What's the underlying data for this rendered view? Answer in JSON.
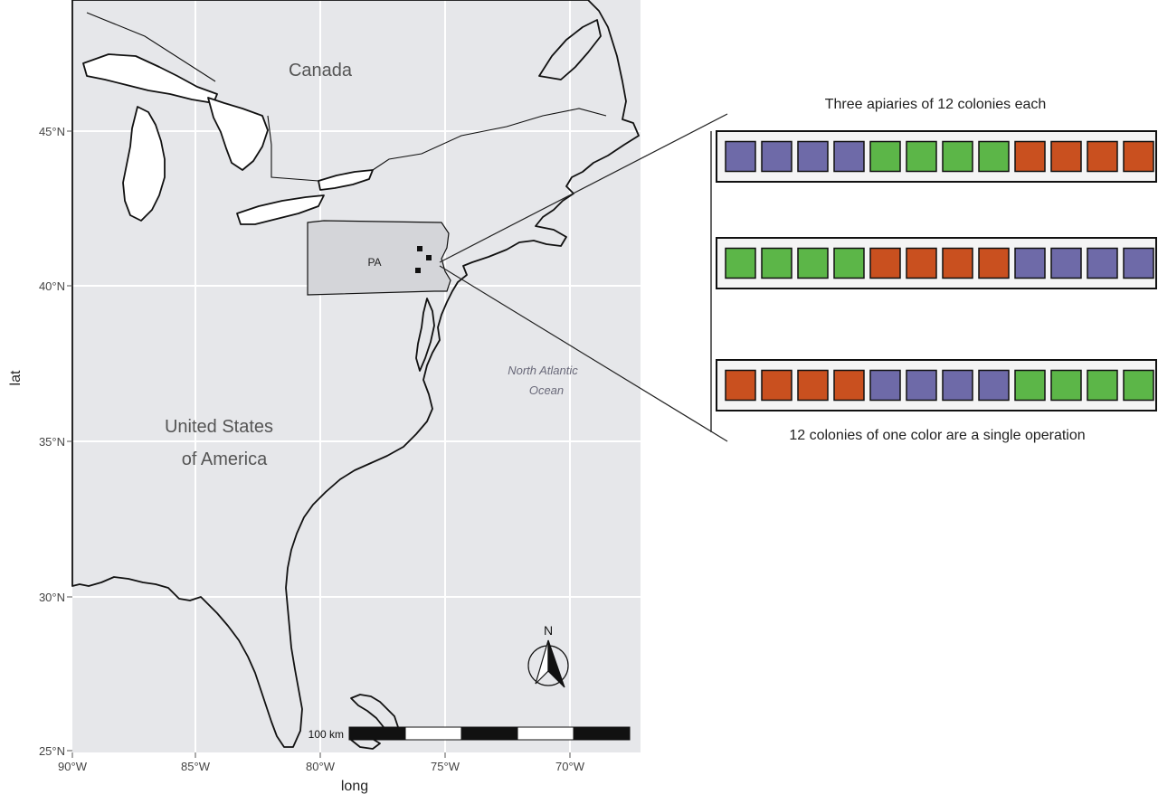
{
  "axes": {
    "xlabel": "long",
    "ylabel": "lat",
    "x_ticks": [
      "90°W",
      "85°W",
      "80°W",
      "75°W",
      "70°W"
    ],
    "y_ticks": [
      "45°N",
      "40°N",
      "35°N",
      "30°N",
      "25°N"
    ],
    "xlim": [
      -90,
      -67
    ],
    "ylim": [
      25,
      48
    ],
    "grid": true
  },
  "labels": {
    "canada": "Canada",
    "usa_line1": "United States",
    "usa_line2": "of America",
    "ocean_line1": "North Atlantic",
    "ocean_line2": "Ocean",
    "state": "PA"
  },
  "highlighted_region": "Pennsylvania",
  "apiary_site_count": 3,
  "scale_bar": {
    "label": "100 km",
    "segments": 5
  },
  "north_arrow": {
    "label": "N"
  },
  "apiary_panel": {
    "title": "Three apiaries of 12 colonies each",
    "caption": "12 colonies of one color are a single operation",
    "rows": [
      [
        "purple",
        "purple",
        "purple",
        "purple",
        "green",
        "green",
        "green",
        "green",
        "orange",
        "orange",
        "orange",
        "orange"
      ],
      [
        "green",
        "green",
        "green",
        "green",
        "orange",
        "orange",
        "orange",
        "orange",
        "purple",
        "purple",
        "purple",
        "purple"
      ],
      [
        "orange",
        "orange",
        "orange",
        "orange",
        "purple",
        "purple",
        "purple",
        "purple",
        "green",
        "green",
        "green",
        "green"
      ]
    ]
  },
  "colors": {
    "purple": "#6e6aa8",
    "green": "#5cb648",
    "orange": "#c9501f",
    "ocean": "#e6e7ea",
    "state_fill": "#d4d5d9",
    "land": "#ffffff"
  }
}
